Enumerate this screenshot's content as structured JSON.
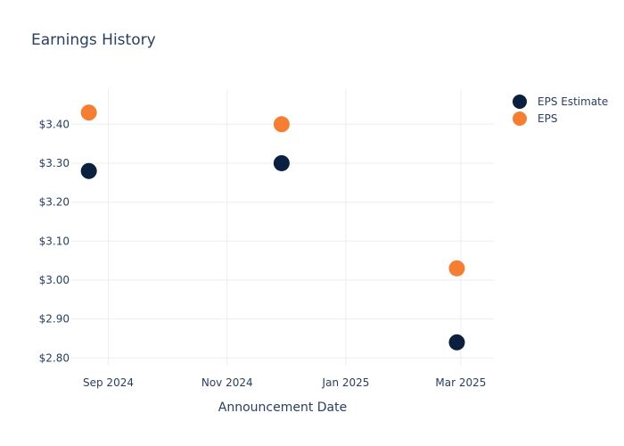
{
  "chart_data": {
    "type": "scatter",
    "title": "Earnings History",
    "xlabel": "Announcement Date",
    "ylabel": "",
    "x_ticks": [
      {
        "date": "2024-09-01",
        "label": "Sep 2024"
      },
      {
        "date": "2024-11-01",
        "label": "Nov 2024"
      },
      {
        "date": "2025-01-01",
        "label": "Jan 2025"
      },
      {
        "date": "2025-03-01",
        "label": "Mar 2025"
      }
    ],
    "y_ticks": [
      2.8,
      2.9,
      3.0,
      3.1,
      3.2,
      3.3,
      3.4
    ],
    "y_tick_labels": [
      "$2.80",
      "$2.90",
      "$3.00",
      "$3.10",
      "$3.20",
      "$3.30",
      "$3.40"
    ],
    "xlim": [
      "2024-08-13",
      "2025-03-18"
    ],
    "ylim": [
      2.78,
      3.49
    ],
    "grid": true,
    "legend_position": "top-right",
    "series": [
      {
        "name": "EPS Estimate",
        "color": "#0b1f3f",
        "points": [
          {
            "x": "2024-08-22",
            "y": 3.28
          },
          {
            "x": "2024-11-29",
            "y": 3.3
          },
          {
            "x": "2025-02-27",
            "y": 2.84
          }
        ]
      },
      {
        "name": "EPS",
        "color": "#f47f32",
        "points": [
          {
            "x": "2024-08-22",
            "y": 3.43
          },
          {
            "x": "2024-11-29",
            "y": 3.4
          },
          {
            "x": "2025-02-27",
            "y": 3.03
          }
        ]
      }
    ]
  }
}
